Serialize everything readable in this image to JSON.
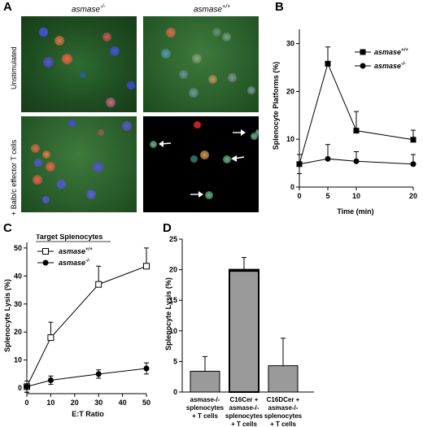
{
  "panels": {
    "A": {
      "letter": "A",
      "col_headers": [
        "asmase",
        "asmase"
      ],
      "col_sups": [
        "-/-",
        "+/+"
      ],
      "row_labels": [
        "Unstimulated",
        "+ Balb/c effector T cells"
      ]
    },
    "B": {
      "letter": "B"
    },
    "C": {
      "letter": "C"
    },
    "D": {
      "letter": "D"
    }
  },
  "chart_data": [
    {
      "panel": "B",
      "type": "line",
      "xlabel": "Time (min)",
      "ylabel": "Splenocyte Platforms (%)",
      "x": [
        0,
        5,
        10,
        20
      ],
      "xticks": [
        "0",
        "5",
        "10",
        "20"
      ],
      "yticks": [
        "0",
        "10",
        "20",
        "30"
      ],
      "ylim": [
        0,
        33
      ],
      "legend_position": "top-right",
      "series": [
        {
          "name": "asmase",
          "sup": "+/+",
          "marker": "filled-square",
          "values": [
            4.8,
            25.8,
            11.8,
            9.9
          ],
          "err": [
            2.0,
            3.5,
            4.0,
            2.0
          ]
        },
        {
          "name": "asmase",
          "sup": "-/-",
          "marker": "filled-circle",
          "values": [
            4.8,
            5.9,
            5.4,
            4.8
          ],
          "err": [
            2.0,
            3.0,
            2.0,
            2.0
          ]
        }
      ]
    },
    {
      "panel": "C",
      "type": "line",
      "xlabel": "E:T Ratio",
      "ylabel": "Splenocyte Lysis (%)",
      "x": [
        0,
        10,
        30,
        50
      ],
      "xticks": [
        "0",
        "10",
        "20",
        "30",
        "40",
        "50"
      ],
      "yticks": [
        "0",
        "10",
        "20",
        "30",
        "40",
        "50"
      ],
      "ylim": [
        -2,
        52
      ],
      "legend_title": "Target Splenocytes",
      "legend_position": "top-left",
      "series": [
        {
          "name": "asmase",
          "sup": "+/+",
          "marker": "open-square",
          "values": [
            0.5,
            18.0,
            37.0,
            43.5
          ],
          "err": [
            2.0,
            5.5,
            6.5,
            6.5
          ]
        },
        {
          "name": "asmase",
          "sup": "-/-",
          "marker": "filled-circle",
          "values": [
            0.5,
            2.8,
            5.0,
            7.0
          ],
          "err": [
            2.0,
            1.5,
            1.5,
            2.0
          ]
        }
      ]
    },
    {
      "panel": "D",
      "type": "bar",
      "ylabel": "Splenocyte Lysis (%)",
      "yticks": [
        "0",
        "5",
        "10",
        "15",
        "20",
        "25"
      ],
      "ylim": [
        0,
        25
      ],
      "values": [
        3.4,
        20.0,
        4.3
      ],
      "err": [
        2.4,
        2.0,
        4.5
      ],
      "categories": [
        [
          "asmase-/-",
          "splenocytes",
          "+ T cells"
        ],
        [
          "C16Cer +",
          "asmase-/-",
          "splenocytes",
          "+ T cells"
        ],
        [
          "C16DCer +",
          "asmase-/-",
          "splenocytes",
          "+ T cells"
        ]
      ]
    }
  ]
}
